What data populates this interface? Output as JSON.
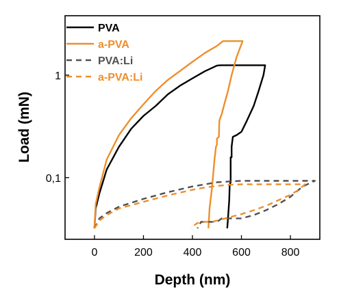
{
  "chart_data": {
    "type": "line",
    "xlabel": "Depth (nm)",
    "ylabel": "Load (mN)",
    "x_scale": "linear",
    "y_scale": "log",
    "xlim": [
      -120,
      920
    ],
    "ylim": [
      0.025,
      3.8
    ],
    "x_ticks": [
      0,
      200,
      400,
      600,
      800
    ],
    "x_tick_labels": [
      "0",
      "200",
      "400",
      "600",
      "800"
    ],
    "y_ticks": [
      0.1,
      1
    ],
    "y_tick_labels": [
      "0,1",
      "1"
    ],
    "grid": false,
    "legend_position": "top-left",
    "series": [
      {
        "name": "PVA",
        "color": "#000000",
        "style": "solid",
        "x": [
          0,
          5,
          20,
          50,
          100,
          150,
          200,
          250,
          300,
          350,
          400,
          450,
          500,
          515,
          560,
          620,
          697,
          690,
          670,
          650,
          620,
          600,
          580,
          565,
          560,
          560,
          556,
          556,
          552,
          550,
          548,
          545,
          542
        ],
        "y": [
          0.032,
          0.05,
          0.07,
          0.12,
          0.2,
          0.3,
          0.4,
          0.5,
          0.65,
          0.79,
          0.93,
          1.09,
          1.24,
          1.25,
          1.25,
          1.25,
          1.25,
          1.0,
          0.7,
          0.5,
          0.35,
          0.28,
          0.26,
          0.25,
          0.2,
          0.158,
          0.158,
          0.09,
          0.085,
          0.06,
          0.05,
          0.04,
          0.032
        ]
      },
      {
        "name": "a-PVA",
        "color": "#ee8e2b",
        "style": "solid",
        "x": [
          0,
          5,
          20,
          50,
          100,
          150,
          200,
          250,
          300,
          350,
          400,
          450,
          500,
          525,
          600,
          605,
          580,
          560,
          545,
          530,
          520,
          510,
          508,
          500,
          500,
          496,
          490,
          480,
          470,
          465
        ],
        "y": [
          0.032,
          0.055,
          0.08,
          0.15,
          0.26,
          0.38,
          0.52,
          0.7,
          0.9,
          1.1,
          1.35,
          1.64,
          1.93,
          2.15,
          2.15,
          2.15,
          1.5,
          1.0,
          0.7,
          0.52,
          0.42,
          0.36,
          0.25,
          0.24,
          0.21,
          0.2,
          0.15,
          0.08,
          0.05,
          0.032
        ]
      },
      {
        "name": "PVA:Li",
        "color": "#505050",
        "style": "dashed",
        "x": [
          0,
          20,
          50,
          100,
          200,
          300,
          400,
          500,
          560,
          600,
          700,
          800,
          900,
          850,
          800,
          750,
          700,
          650,
          600,
          565,
          520,
          500,
          460,
          435,
          430,
          420
        ],
        "y": [
          0.032,
          0.04,
          0.045,
          0.052,
          0.062,
          0.072,
          0.082,
          0.09,
          0.092,
          0.093,
          0.093,
          0.093,
          0.093,
          0.082,
          0.065,
          0.055,
          0.048,
          0.043,
          0.04,
          0.04,
          0.04,
          0.037,
          0.037,
          0.037,
          0.035,
          0.032
        ]
      },
      {
        "name": "a-PVA:Li",
        "color": "#ee8e2b",
        "style": "dashed",
        "x": [
          0,
          20,
          50,
          100,
          200,
          300,
          400,
          450,
          500,
          550,
          600,
          700,
          800,
          860,
          830,
          800,
          750,
          700,
          650,
          600,
          550,
          500,
          480,
          460,
          440,
          420,
          405,
          395
        ],
        "y": [
          0.032,
          0.038,
          0.043,
          0.05,
          0.058,
          0.067,
          0.076,
          0.08,
          0.083,
          0.085,
          0.086,
          0.086,
          0.086,
          0.086,
          0.075,
          0.068,
          0.06,
          0.053,
          0.048,
          0.044,
          0.041,
          0.038,
          0.037,
          0.037,
          0.037,
          0.036,
          0.034,
          0.032
        ]
      }
    ]
  }
}
